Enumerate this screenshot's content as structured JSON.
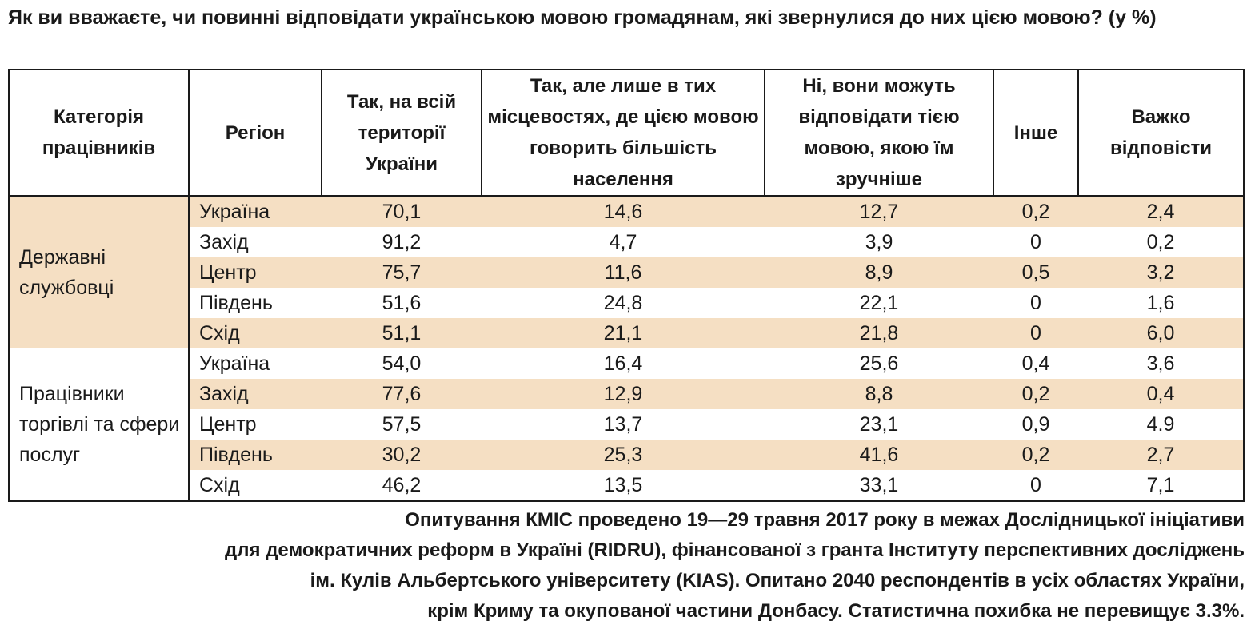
{
  "title": "Як ви вважаєте, чи повинні відповідати українською мовою громадянам, які звернулися до них цією мовою? (у %)",
  "chart_data": {
    "type": "table",
    "columns": [
      "Категорія працівників",
      "Регіон",
      "Так, на всій території України",
      "Так, але лише в тих місцевостях, де цією мовою говорить більшість населення",
      "Ні, вони можуть відповідати тією мовою, якою їм зручніше",
      "Інше",
      "Важко відповісти"
    ],
    "groups": [
      {
        "category": "Державні службовці",
        "shade": "#f5dfc3",
        "rows": [
          {
            "region": "Україна",
            "values": [
              "70,1",
              "14,6",
              "12,7",
              "0,2",
              "2,4"
            ],
            "shaded": true
          },
          {
            "region": "Захід",
            "values": [
              "91,2",
              "4,7",
              "3,9",
              "0",
              "0,2"
            ],
            "shaded": false
          },
          {
            "region": "Центр",
            "values": [
              "75,7",
              "11,6",
              "8,9",
              "0,5",
              "3,2"
            ],
            "shaded": true
          },
          {
            "region": "Південь",
            "values": [
              "51,6",
              "24,8",
              "22,1",
              "0",
              "1,6"
            ],
            "shaded": false
          },
          {
            "region": "Схід",
            "values": [
              "51,1",
              "21,1",
              "21,8",
              "0",
              "6,0"
            ],
            "shaded": true
          }
        ]
      },
      {
        "category": "Працівники торгівлі та сфери послуг",
        "shade": "#ffffff",
        "rows": [
          {
            "region": "Україна",
            "values": [
              "54,0",
              "16,4",
              "25,6",
              "0,4",
              "3,6"
            ],
            "shaded": false
          },
          {
            "region": "Захід",
            "values": [
              "77,6",
              "12,9",
              "8,8",
              "0,2",
              "0,4"
            ],
            "shaded": true
          },
          {
            "region": "Центр",
            "values": [
              "57,5",
              "13,7",
              "23,1",
              "0,9",
              "4.9"
            ],
            "shaded": false
          },
          {
            "region": "Південь",
            "values": [
              "30,2",
              "25,3",
              "41,6",
              "0,2",
              "2,7"
            ],
            "shaded": true
          },
          {
            "region": "Схід",
            "values": [
              "46,2",
              "13,5",
              "33,1",
              "0",
              "7,1"
            ],
            "shaded": false
          }
        ]
      }
    ]
  },
  "note_lines": [
    "Опитування КМІС проведено 19—29 травня 2017 року в межах Дослідницької ініціативи",
    "для демократичних реформ в Україні (RIDRU), фінансованої з гранта Інституту перспективних досліджень",
    "ім. Кулів Альбертського університету (KIAS). Опитано 2040 респондентів в усіх областях України,",
    "крім Криму та окупованої частини Донбасу. Статистична похибка не перевищує 3.3%."
  ],
  "colors": {
    "row_shade": "#f5dfc3",
    "border": "#1a1a1a"
  }
}
